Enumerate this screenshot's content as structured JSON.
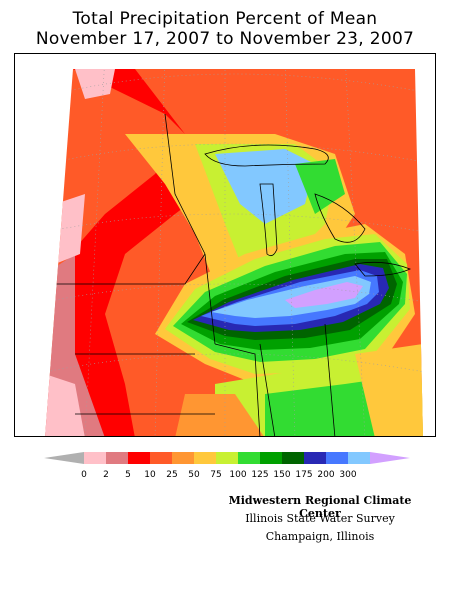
{
  "title": {
    "line1": "Total Precipitation Percent of Mean",
    "line2": "November 17, 2007 to November 23, 2007"
  },
  "legend": {
    "labels": [
      "0",
      "2",
      "5",
      "10",
      "25",
      "50",
      "75",
      "100",
      "125",
      "150",
      "175",
      "200",
      "300"
    ],
    "colors": [
      "#b0b0b0",
      "#ffc0c8",
      "#e07a80",
      "#ff0000",
      "#ff5a28",
      "#ff9632",
      "#ffc83c",
      "#c8f032",
      "#32dc32",
      "#00a000",
      "#006400",
      "#2828b4",
      "#4678ff",
      "#82c8ff",
      "#d2a0ff"
    ]
  },
  "map": {
    "region": "Midwest United States",
    "feature": "Band of above-normal precipitation from Iowa through northern Illinois, southern Michigan and northern Indiana/Ohio; dry west and north"
  },
  "credits": {
    "line1": "Midwestern Regional Climate Center",
    "line2": "Illinois State Water Survey",
    "line3": "Champaign, Illinois"
  }
}
